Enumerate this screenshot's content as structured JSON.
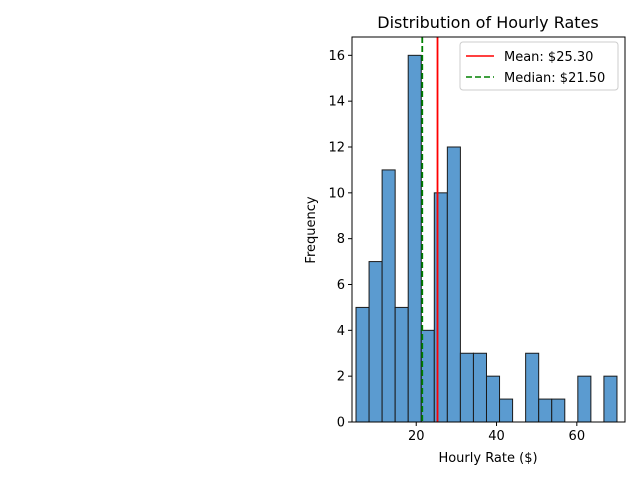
{
  "chart_data": {
    "type": "bar",
    "title": "Distribution of Hourly Rates",
    "xlabel": "Hourly Rate ($)",
    "ylabel": "Frequency",
    "xlim": [
      4.0,
      72.0
    ],
    "ylim": [
      0,
      16.8
    ],
    "grid": false,
    "legend_position": "top-right",
    "bar_color": "#5b9bd0",
    "bar_edge_color": "#1a1a1a",
    "mean_color": "#ff0000",
    "median_color": "#008000",
    "bins": [
      {
        "start": 5.0,
        "end": 8.25,
        "count": 5
      },
      {
        "start": 8.25,
        "end": 11.5,
        "count": 7
      },
      {
        "start": 11.5,
        "end": 14.75,
        "count": 11
      },
      {
        "start": 14.75,
        "end": 18.0,
        "count": 5
      },
      {
        "start": 18.0,
        "end": 21.25,
        "count": 16
      },
      {
        "start": 21.25,
        "end": 24.5,
        "count": 4
      },
      {
        "start": 24.5,
        "end": 27.75,
        "count": 10
      },
      {
        "start": 27.75,
        "end": 31.0,
        "count": 12
      },
      {
        "start": 31.0,
        "end": 34.25,
        "count": 3
      },
      {
        "start": 34.25,
        "end": 37.5,
        "count": 3
      },
      {
        "start": 37.5,
        "end": 40.75,
        "count": 2
      },
      {
        "start": 40.75,
        "end": 44.0,
        "count": 1
      },
      {
        "start": 44.0,
        "end": 47.25,
        "count": 0
      },
      {
        "start": 47.25,
        "end": 50.5,
        "count": 3
      },
      {
        "start": 50.5,
        "end": 53.75,
        "count": 1
      },
      {
        "start": 53.75,
        "end": 57.0,
        "count": 1
      },
      {
        "start": 57.0,
        "end": 60.25,
        "count": 0
      },
      {
        "start": 60.25,
        "end": 63.5,
        "count": 2
      },
      {
        "start": 63.5,
        "end": 66.75,
        "count": 0
      },
      {
        "start": 66.75,
        "end": 70.0,
        "count": 2
      }
    ],
    "x_ticks": [
      20,
      40,
      60
    ],
    "x_tick_labels": [
      "20",
      "40",
      "60"
    ],
    "y_ticks": [
      0,
      2,
      4,
      6,
      8,
      10,
      12,
      14,
      16
    ],
    "y_tick_labels": [
      "0",
      "2",
      "4",
      "6",
      "8",
      "10",
      "12",
      "14",
      "16"
    ],
    "mean": 25.3,
    "median": 21.5,
    "legend": [
      {
        "label": "Mean: $25.30",
        "style": "solid",
        "color": "#ff0000"
      },
      {
        "label": "Median: $21.50",
        "style": "dashed",
        "color": "#008000"
      }
    ]
  }
}
